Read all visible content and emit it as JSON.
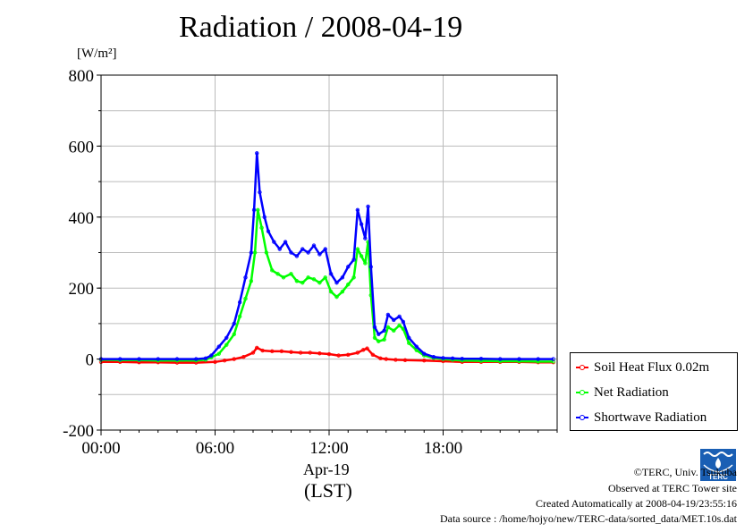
{
  "chart_data": {
    "type": "line",
    "title": "Radiation / 2008-04-19",
    "ylabel": "[W/m²]",
    "xlabel": "(LST)",
    "xdate": "Apr-19",
    "xlim": [
      0,
      24
    ],
    "ylim": [
      -200,
      800
    ],
    "x_ticks": [
      0,
      6,
      12,
      18
    ],
    "x_tick_labels": [
      "00:00",
      "06:00",
      "12:00",
      "18:00"
    ],
    "y_ticks": [
      -200,
      0,
      200,
      400,
      600,
      800
    ],
    "y_tick_labels": [
      "-200",
      "0",
      "200",
      "400",
      "600",
      "800"
    ],
    "grid": true,
    "legend_position": "right-middle",
    "series": [
      {
        "name": "Soil Heat Flux 0.02m",
        "color": "#ff0000",
        "points": [
          [
            0,
            -8
          ],
          [
            1,
            -8
          ],
          [
            2,
            -9
          ],
          [
            3,
            -9
          ],
          [
            4,
            -10
          ],
          [
            5,
            -10
          ],
          [
            6,
            -8
          ],
          [
            6.5,
            -4
          ],
          [
            7,
            0
          ],
          [
            7.5,
            6
          ],
          [
            8,
            18
          ],
          [
            8.2,
            32
          ],
          [
            8.5,
            24
          ],
          [
            9,
            22
          ],
          [
            9.5,
            22
          ],
          [
            10,
            20
          ],
          [
            10.5,
            18
          ],
          [
            11,
            18
          ],
          [
            11.5,
            16
          ],
          [
            12,
            14
          ],
          [
            12.5,
            10
          ],
          [
            13,
            12
          ],
          [
            13.5,
            18
          ],
          [
            13.8,
            26
          ],
          [
            14,
            30
          ],
          [
            14.3,
            12
          ],
          [
            14.7,
            2
          ],
          [
            15,
            0
          ],
          [
            15.5,
            -2
          ],
          [
            16,
            -3
          ],
          [
            17,
            -4
          ],
          [
            18,
            -6
          ],
          [
            19,
            -8
          ],
          [
            20,
            -8
          ],
          [
            21,
            -8
          ],
          [
            22,
            -8
          ],
          [
            23,
            -9
          ],
          [
            23.8,
            -9
          ]
        ]
      },
      {
        "name": "Net Radiation",
        "color": "#00ff00",
        "points": [
          [
            0,
            -2
          ],
          [
            1,
            -3
          ],
          [
            2,
            -3
          ],
          [
            3,
            -4
          ],
          [
            4,
            -4
          ],
          [
            5,
            -4
          ],
          [
            5.5,
            -2
          ],
          [
            5.8,
            5
          ],
          [
            6.2,
            15
          ],
          [
            6.6,
            40
          ],
          [
            7,
            70
          ],
          [
            7.3,
            120
          ],
          [
            7.6,
            170
          ],
          [
            7.9,
            220
          ],
          [
            8.1,
            300
          ],
          [
            8.25,
            420
          ],
          [
            8.45,
            370
          ],
          [
            8.7,
            300
          ],
          [
            9,
            250
          ],
          [
            9.3,
            240
          ],
          [
            9.6,
            230
          ],
          [
            10,
            240
          ],
          [
            10.3,
            220
          ],
          [
            10.6,
            215
          ],
          [
            10.9,
            230
          ],
          [
            11.2,
            225
          ],
          [
            11.5,
            215
          ],
          [
            11.8,
            230
          ],
          [
            12.1,
            190
          ],
          [
            12.4,
            175
          ],
          [
            12.7,
            190
          ],
          [
            13,
            210
          ],
          [
            13.3,
            230
          ],
          [
            13.5,
            310
          ],
          [
            13.7,
            290
          ],
          [
            13.9,
            270
          ],
          [
            14.05,
            330
          ],
          [
            14.2,
            180
          ],
          [
            14.4,
            60
          ],
          [
            14.6,
            50
          ],
          [
            14.9,
            55
          ],
          [
            15.1,
            90
          ],
          [
            15.4,
            80
          ],
          [
            15.7,
            95
          ],
          [
            15.9,
            85
          ],
          [
            16.2,
            45
          ],
          [
            16.6,
            25
          ],
          [
            17,
            10
          ],
          [
            17.5,
            3
          ],
          [
            18,
            0
          ],
          [
            18.5,
            -2
          ],
          [
            19,
            -4
          ],
          [
            20,
            -5
          ],
          [
            21,
            -6
          ],
          [
            22,
            -6
          ],
          [
            23,
            -7
          ],
          [
            23.8,
            -7
          ]
        ]
      },
      {
        "name": "Shortwave Radiation",
        "color": "#0000ff",
        "points": [
          [
            0,
            0
          ],
          [
            1,
            0
          ],
          [
            2,
            0
          ],
          [
            3,
            0
          ],
          [
            4,
            0
          ],
          [
            5,
            0
          ],
          [
            5.5,
            2
          ],
          [
            5.8,
            10
          ],
          [
            6.2,
            35
          ],
          [
            6.6,
            60
          ],
          [
            7,
            100
          ],
          [
            7.3,
            160
          ],
          [
            7.6,
            230
          ],
          [
            7.9,
            300
          ],
          [
            8.05,
            420
          ],
          [
            8.2,
            580
          ],
          [
            8.35,
            470
          ],
          [
            8.6,
            400
          ],
          [
            8.8,
            360
          ],
          [
            9.1,
            330
          ],
          [
            9.4,
            310
          ],
          [
            9.7,
            330
          ],
          [
            10,
            300
          ],
          [
            10.3,
            290
          ],
          [
            10.6,
            310
          ],
          [
            10.9,
            300
          ],
          [
            11.2,
            320
          ],
          [
            11.5,
            295
          ],
          [
            11.8,
            310
          ],
          [
            12.1,
            240
          ],
          [
            12.4,
            215
          ],
          [
            12.7,
            230
          ],
          [
            13,
            260
          ],
          [
            13.3,
            280
          ],
          [
            13.5,
            420
          ],
          [
            13.7,
            380
          ],
          [
            13.9,
            340
          ],
          [
            14.05,
            430
          ],
          [
            14.2,
            260
          ],
          [
            14.4,
            90
          ],
          [
            14.6,
            70
          ],
          [
            14.9,
            80
          ],
          [
            15.1,
            125
          ],
          [
            15.4,
            110
          ],
          [
            15.7,
            120
          ],
          [
            15.9,
            105
          ],
          [
            16.2,
            60
          ],
          [
            16.6,
            35
          ],
          [
            17,
            15
          ],
          [
            17.5,
            6
          ],
          [
            18,
            3
          ],
          [
            18.5,
            2
          ],
          [
            19,
            1
          ],
          [
            20,
            1
          ],
          [
            21,
            0
          ],
          [
            22,
            0
          ],
          [
            23,
            0
          ],
          [
            23.8,
            0
          ]
        ]
      }
    ]
  },
  "credits": {
    "copyright": "©TERC, Univ. Tsukuba",
    "site": "Observed at TERC Tower site",
    "created": "Created Automatically at 2008-04-19/23:55:16",
    "source": "Data source : /home/hojyo/new/TERC-data/sorted_data/MET.10s.dat"
  },
  "logo": {
    "text": "TERC"
  }
}
